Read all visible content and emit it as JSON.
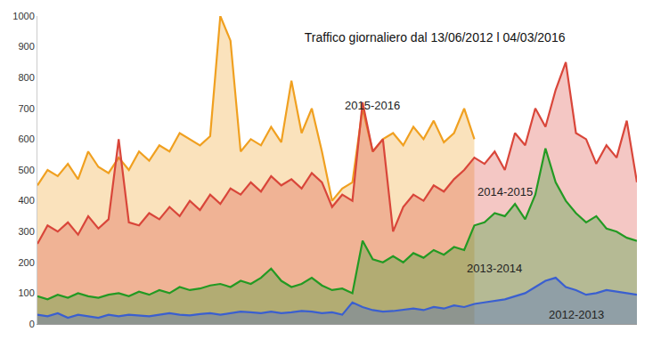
{
  "chart_data": {
    "type": "area",
    "title": "Traffico giornaliero dal 13/06/2012 l 04/03/2016",
    "categories": [
      null,
      null,
      null,
      null,
      null,
      null,
      null,
      null,
      null,
      null,
      null,
      null,
      null,
      null,
      null,
      null,
      null,
      null,
      null,
      null,
      null,
      null,
      null,
      null,
      null,
      null,
      null,
      null,
      null,
      null,
      null,
      null,
      null,
      null,
      null,
      null,
      null,
      null,
      null,
      null,
      null,
      null,
      null,
      null,
      null,
      null,
      null,
      null,
      null,
      null,
      null,
      null,
      null,
      null,
      null,
      null,
      null,
      null,
      null,
      null
    ],
    "series": [
      {
        "name": "2015-2016",
        "color": "#f0a020",
        "values": [
          450,
          500,
          480,
          520,
          470,
          560,
          510,
          490,
          540,
          500,
          560,
          530,
          580,
          560,
          620,
          600,
          580,
          610,
          1000,
          920,
          560,
          600,
          580,
          640,
          590,
          790,
          620,
          700,
          560,
          400,
          440,
          460,
          700,
          560,
          600,
          620,
          580,
          640,
          600,
          660,
          590,
          620,
          700,
          600,
          null,
          null,
          null,
          null,
          null,
          null,
          null,
          null,
          null,
          null,
          null,
          null,
          null,
          null,
          null,
          null
        ]
      },
      {
        "name": "2014-2015",
        "color": "#d9463a",
        "values": [
          260,
          320,
          300,
          330,
          290,
          350,
          310,
          340,
          600,
          330,
          320,
          360,
          340,
          380,
          350,
          400,
          370,
          420,
          390,
          440,
          420,
          460,
          430,
          480,
          450,
          470,
          440,
          490,
          460,
          380,
          420,
          400,
          720,
          560,
          600,
          300,
          380,
          420,
          400,
          450,
          430,
          470,
          500,
          540,
          520,
          560,
          500,
          620,
          580,
          700,
          640,
          760,
          850,
          620,
          600,
          520,
          580,
          540,
          660,
          460
        ]
      },
      {
        "name": "2013-2014",
        "color": "#239a23",
        "values": [
          90,
          80,
          95,
          85,
          100,
          90,
          85,
          95,
          100,
          90,
          105,
          95,
          110,
          100,
          120,
          110,
          115,
          125,
          130,
          120,
          140,
          130,
          150,
          180,
          140,
          120,
          130,
          150,
          125,
          110,
          115,
          100,
          270,
          210,
          200,
          220,
          200,
          230,
          215,
          240,
          225,
          250,
          240,
          320,
          330,
          360,
          350,
          390,
          340,
          420,
          570,
          460,
          400,
          360,
          330,
          350,
          310,
          300,
          280,
          270
        ]
      },
      {
        "name": "2012-2013",
        "color": "#3a5fd0",
        "values": [
          30,
          25,
          35,
          20,
          30,
          25,
          20,
          30,
          25,
          30,
          28,
          25,
          30,
          35,
          30,
          28,
          32,
          35,
          30,
          35,
          40,
          38,
          35,
          40,
          35,
          38,
          42,
          40,
          35,
          38,
          30,
          70,
          55,
          45,
          40,
          42,
          45,
          50,
          45,
          55,
          50,
          60,
          55,
          65,
          70,
          75,
          80,
          90,
          100,
          120,
          140,
          150,
          120,
          110,
          95,
          100,
          110,
          105,
          100,
          95
        ]
      }
    ],
    "ylim": [
      0,
      1000
    ],
    "yticks": [
      0,
      100,
      200,
      300,
      400,
      500,
      600,
      700,
      800,
      900,
      1000
    ],
    "grid": false,
    "tick_labels": "y"
  }
}
